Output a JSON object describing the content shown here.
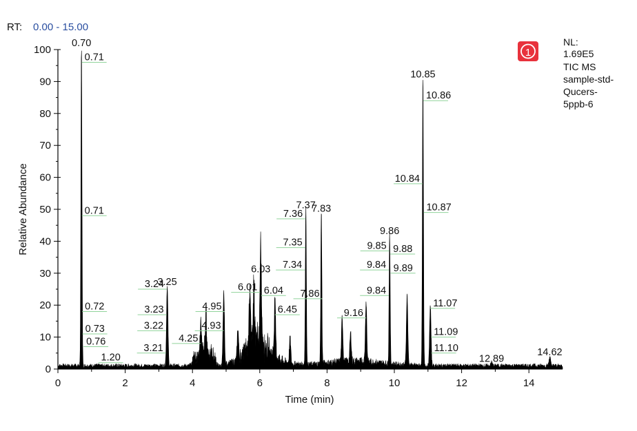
{
  "header": {
    "rt_prefix": "RT:",
    "rt_range": "0.00 - 15.00"
  },
  "badge": {
    "label": "1",
    "color": "#e8323c"
  },
  "info": {
    "lines": [
      "NL:",
      "1.69E5",
      "TIC  MS",
      "sample-std-",
      "Qucers-",
      "5ppb-6"
    ]
  },
  "colors": {
    "trace": "#000000",
    "leader": "#8fd39a",
    "rt_range": "#2b4fa0"
  },
  "chart_data": {
    "type": "line",
    "xlabel": "Time (min)",
    "ylabel": "Relative Abundance",
    "xlim": [
      0,
      15
    ],
    "ylim": [
      0,
      100
    ],
    "xticks": [
      0,
      2,
      4,
      6,
      8,
      10,
      12,
      14
    ],
    "yticks": [
      0,
      10,
      20,
      30,
      40,
      50,
      60,
      70,
      80,
      90,
      100
    ],
    "grid": false,
    "series": [
      {
        "peaks": [
          {
            "rt": 0.7,
            "height": 100
          },
          {
            "rt": 3.25,
            "height": 25
          },
          {
            "rt": 4.25,
            "height": 8
          },
          {
            "rt": 4.4,
            "height": 11
          },
          {
            "rt": 4.93,
            "height": 23
          },
          {
            "rt": 5.35,
            "height": 10
          },
          {
            "rt": 5.7,
            "height": 19
          },
          {
            "rt": 5.82,
            "height": 18
          },
          {
            "rt": 6.03,
            "height": 29
          },
          {
            "rt": 6.45,
            "height": 17
          },
          {
            "rt": 6.9,
            "height": 8
          },
          {
            "rt": 7.37,
            "height": 49
          },
          {
            "rt": 7.83,
            "height": 48
          },
          {
            "rt": 8.45,
            "height": 14
          },
          {
            "rt": 8.7,
            "height": 9
          },
          {
            "rt": 9.16,
            "height": 19
          },
          {
            "rt": 9.86,
            "height": 41
          },
          {
            "rt": 10.38,
            "height": 22
          },
          {
            "rt": 10.85,
            "height": 90
          },
          {
            "rt": 11.07,
            "height": 19
          },
          {
            "rt": 12.89,
            "height": 1
          },
          {
            "rt": 14.62,
            "height": 3
          }
        ]
      }
    ],
    "annotations": [
      {
        "label": "0.70",
        "x": 0.7,
        "y": 100
      },
      {
        "label": "0.71",
        "x": 0.71,
        "y": 96
      },
      {
        "label": "0.71",
        "x": 0.71,
        "y": 48
      },
      {
        "label": "0.72",
        "x": 0.72,
        "y": 18
      },
      {
        "label": "0.73",
        "x": 0.73,
        "y": 11
      },
      {
        "label": "0.76",
        "x": 0.76,
        "y": 7
      },
      {
        "label": "1.20",
        "x": 1.2,
        "y": 2
      },
      {
        "label": "3.24",
        "x": 3.24,
        "y": 25
      },
      {
        "label": "3.25",
        "x": 3.25,
        "y": 25
      },
      {
        "label": "3.23",
        "x": 3.23,
        "y": 17
      },
      {
        "label": "3.22",
        "x": 3.22,
        "y": 12
      },
      {
        "label": "3.21",
        "x": 3.21,
        "y": 5
      },
      {
        "label": "4.25",
        "x": 4.25,
        "y": 8
      },
      {
        "label": "4.95",
        "x": 4.95,
        "y": 18
      },
      {
        "label": "4.93",
        "x": 4.93,
        "y": 12
      },
      {
        "label": "6.01",
        "x": 6.01,
        "y": 24
      },
      {
        "label": "6.03",
        "x": 6.03,
        "y": 29
      },
      {
        "label": "6.04",
        "x": 6.04,
        "y": 23
      },
      {
        "label": "6.45",
        "x": 6.45,
        "y": 17
      },
      {
        "label": "7.36",
        "x": 7.36,
        "y": 47
      },
      {
        "label": "7.37",
        "x": 7.37,
        "y": 49
      },
      {
        "label": "7.35",
        "x": 7.35,
        "y": 38
      },
      {
        "label": "7.34",
        "x": 7.34,
        "y": 31
      },
      {
        "label": "7.83",
        "x": 7.83,
        "y": 48
      },
      {
        "label": "7.86",
        "x": 7.86,
        "y": 22
      },
      {
        "label": "9.16",
        "x": 9.16,
        "y": 16
      },
      {
        "label": "9.85",
        "x": 9.85,
        "y": 37
      },
      {
        "label": "9.86",
        "x": 9.86,
        "y": 41
      },
      {
        "label": "9.88",
        "x": 9.88,
        "y": 36
      },
      {
        "label": "9.84",
        "x": 9.84,
        "y": 31
      },
      {
        "label": "9.89",
        "x": 9.89,
        "y": 30
      },
      {
        "label": "9.84",
        "x": 9.84,
        "y": 23
      },
      {
        "label": "10.85",
        "x": 10.85,
        "y": 90
      },
      {
        "label": "10.86",
        "x": 10.86,
        "y": 84
      },
      {
        "label": "10.84",
        "x": 10.84,
        "y": 58
      },
      {
        "label": "10.87",
        "x": 10.87,
        "y": 49
      },
      {
        "label": "11.07",
        "x": 11.07,
        "y": 19
      },
      {
        "label": "11.09",
        "x": 11.09,
        "y": 10
      },
      {
        "label": "11.10",
        "x": 11.1,
        "y": 5
      },
      {
        "label": "12.89",
        "x": 12.89,
        "y": 1
      },
      {
        "label": "14.62",
        "x": 14.62,
        "y": 3
      }
    ]
  }
}
